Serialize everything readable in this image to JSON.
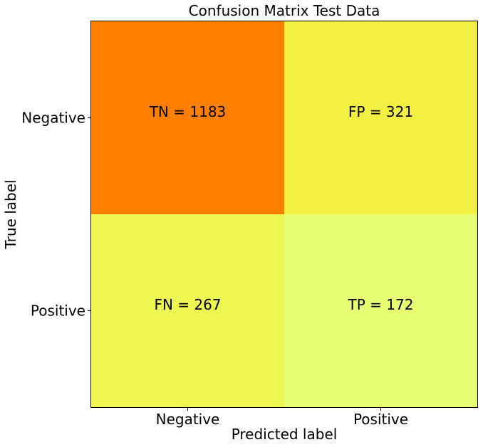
{
  "chart_data": {
    "type": "heatmap",
    "title": "Confusion Matrix Test Data",
    "xlabel": "Predicted label",
    "ylabel": "True label",
    "x_categories": [
      "Negative",
      "Positive"
    ],
    "y_categories": [
      "Negative",
      "Positive"
    ],
    "cells": [
      {
        "row": 0,
        "col": 0,
        "code": "TN",
        "value": 1183,
        "label": "TN = 1183",
        "color": "#ff8000"
      },
      {
        "row": 0,
        "col": 1,
        "code": "FP",
        "value": 321,
        "label": "FP = 321",
        "color": "#f2f042"
      },
      {
        "row": 1,
        "col": 0,
        "code": "FN",
        "value": 267,
        "label": "FN = 267",
        "color": "#eef652"
      },
      {
        "row": 1,
        "col": 1,
        "code": "TP",
        "value": 172,
        "label": "TP = 172",
        "color": "#e6ff73"
      }
    ],
    "grid": false,
    "colormap": "Wistia"
  }
}
